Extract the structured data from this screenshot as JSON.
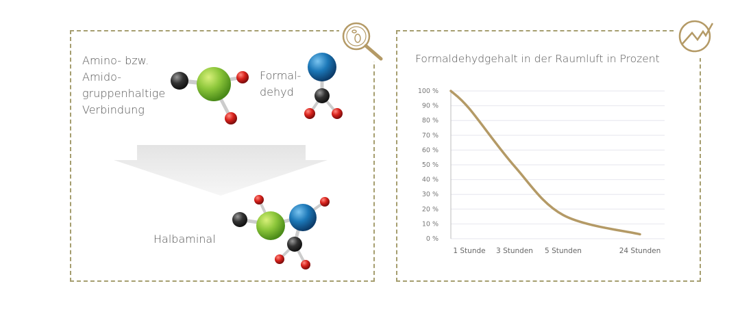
{
  "left_panel": {
    "reactant1_label": [
      "Amino- bzw.",
      "Amido-",
      "gruppenhaltige",
      "Verbindung"
    ],
    "reactant2_label": [
      "Formal-",
      "dehyd"
    ],
    "product_label": "Halbaminal",
    "icon": "magnifier-bacteria-icon"
  },
  "right_panel": {
    "icon": "trend-chart-icon"
  },
  "colors": {
    "accent": "#b49a66",
    "border": "#a59d6e",
    "line": "#b49a66"
  },
  "chart_data": {
    "type": "line",
    "title": "Formaldehydgehalt in der Raumluft in Prozent",
    "categories": [
      "",
      "1 Stunde",
      "3 Stunden",
      "5 Stunden",
      "24 Stunden"
    ],
    "series": [
      {
        "values": [
          100,
          88,
          49,
          16,
          3
        ]
      }
    ],
    "yticks": [
      "0 %",
      "10 %",
      "20 %",
      "30 %",
      "40 %",
      "50 %",
      "60 %",
      "70 %",
      "80 %",
      "90 %",
      "100 %"
    ],
    "ylim": [
      0,
      100
    ],
    "grid": true
  }
}
